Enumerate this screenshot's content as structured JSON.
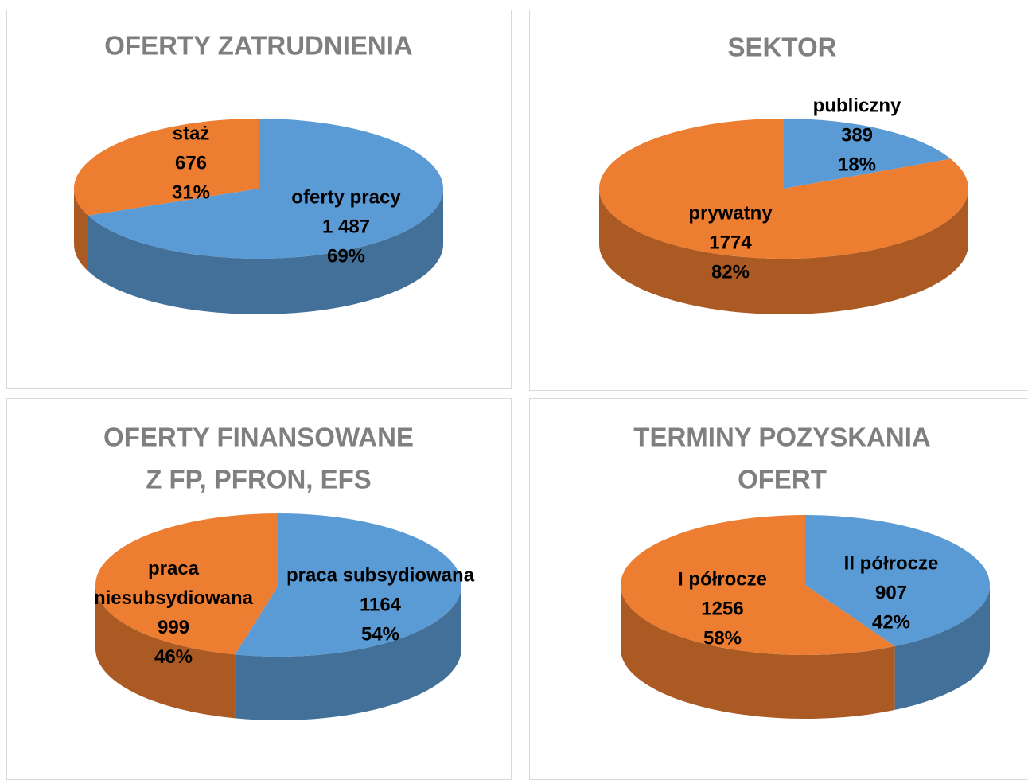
{
  "chart_data": [
    {
      "type": "pie3d",
      "title": [
        "OFERTY ZATRUDNIENIA"
      ],
      "categories": [
        "oferty pracy",
        "staż"
      ],
      "values": [
        1487,
        676
      ],
      "value_labels": [
        "1 487",
        "676"
      ],
      "percents": [
        69,
        31
      ],
      "percent_labels": [
        "69%",
        "31%"
      ],
      "colors": [
        "#5b9bd5",
        "#ed7d31"
      ]
    },
    {
      "type": "pie3d",
      "title": [
        "SEKTOR"
      ],
      "categories": [
        "publiczny",
        "prywatny"
      ],
      "values": [
        389,
        1774
      ],
      "percents": [
        18,
        82
      ],
      "percent_labels": [
        "18%",
        "82%"
      ],
      "colors": [
        "#5b9bd5",
        "#ed7d31"
      ]
    },
    {
      "type": "pie3d",
      "title": [
        "OFERTY FINANSOWANE",
        "Z FP, PFRON, EFS"
      ],
      "categories": [
        "praca subsydiowana",
        "praca niesubsydiowana"
      ],
      "values": [
        1164,
        999
      ],
      "percents": [
        54,
        46
      ],
      "percent_labels": [
        "54%",
        "46%"
      ],
      "colors": [
        "#5b9bd5",
        "#ed7d31"
      ]
    },
    {
      "type": "pie3d",
      "title": [
        "TERMINY POZYSKANIA",
        "OFERT"
      ],
      "categories": [
        "II półrocze",
        "I półrocze"
      ],
      "values": [
        907,
        1256
      ],
      "percents": [
        42,
        58
      ],
      "percent_labels": [
        "42%",
        "58%"
      ],
      "colors": [
        "#5b9bd5",
        "#ed7d31"
      ]
    }
  ]
}
